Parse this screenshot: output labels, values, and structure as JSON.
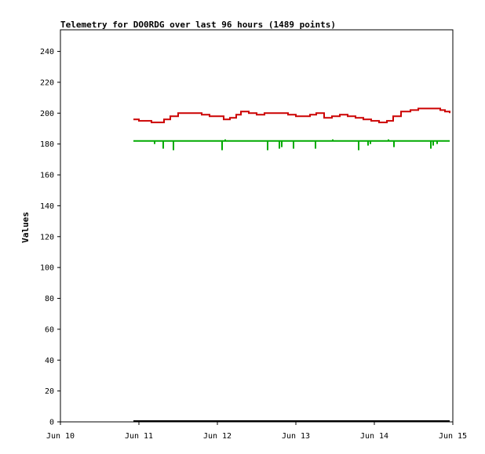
{
  "chart_data": {
    "type": "line",
    "title": "Telemetry for DO0RDG over last 96 hours (1489 points)",
    "xlabel": "",
    "ylabel": "Values",
    "x_ticks": [
      "Jun 10",
      "Jun 11",
      "Jun 12",
      "Jun 13",
      "Jun 14",
      "Jun 15"
    ],
    "y_ticks": [
      "0",
      "20",
      "40",
      "60",
      "80",
      "100",
      "120",
      "140",
      "160",
      "180",
      "200",
      "220",
      "240"
    ],
    "xlim_days": [
      10,
      15
    ],
    "ylim": [
      0,
      254
    ],
    "grid": false,
    "legend": "none",
    "series": [
      {
        "color": "#cc0000",
        "x_days": [
          10.93,
          11.0,
          11.08,
          11.16,
          11.24,
          11.32,
          11.4,
          11.5,
          11.6,
          11.7,
          11.8,
          11.9,
          12.0,
          12.08,
          12.16,
          12.24,
          12.3,
          12.4,
          12.5,
          12.6,
          12.7,
          12.8,
          12.9,
          13.0,
          13.1,
          13.18,
          13.26,
          13.36,
          13.46,
          13.56,
          13.66,
          13.76,
          13.86,
          13.96,
          14.06,
          14.16,
          14.24,
          14.34,
          14.46,
          14.56,
          14.66,
          14.76,
          14.84,
          14.9,
          14.96
        ],
        "values": [
          196,
          195,
          195,
          194,
          194,
          196,
          198,
          200,
          200,
          200,
          199,
          198,
          198,
          196,
          197,
          199,
          201,
          200,
          199,
          200,
          200,
          200,
          199,
          198,
          198,
          199,
          200,
          197,
          198,
          199,
          198,
          197,
          196,
          195,
          194,
          195,
          198,
          201,
          202,
          203,
          203,
          203,
          202,
          201,
          200
        ]
      },
      {
        "color": "#00aa00",
        "baseline": 182,
        "x_days": [
          10.93,
          14.96
        ],
        "values": [
          182,
          182
        ],
        "spikes": [
          {
            "x_day": 11.2,
            "value": 180
          },
          {
            "x_day": 11.31,
            "value": 177
          },
          {
            "x_day": 11.44,
            "value": 176
          },
          {
            "x_day": 12.06,
            "value": 176
          },
          {
            "x_day": 12.1,
            "value": 183
          },
          {
            "x_day": 12.64,
            "value": 176
          },
          {
            "x_day": 12.79,
            "value": 177
          },
          {
            "x_day": 12.82,
            "value": 178
          },
          {
            "x_day": 12.97,
            "value": 177
          },
          {
            "x_day": 13.25,
            "value": 177
          },
          {
            "x_day": 13.47,
            "value": 183
          },
          {
            "x_day": 13.8,
            "value": 176
          },
          {
            "x_day": 13.92,
            "value": 179
          },
          {
            "x_day": 13.95,
            "value": 180
          },
          {
            "x_day": 14.18,
            "value": 183
          },
          {
            "x_day": 14.25,
            "value": 178
          },
          {
            "x_day": 14.72,
            "value": 177
          },
          {
            "x_day": 14.75,
            "value": 179
          },
          {
            "x_day": 14.8,
            "value": 180
          }
        ]
      },
      {
        "color": "#000000",
        "x_days": [
          10.93,
          14.96
        ],
        "values": [
          0.5,
          0.5
        ]
      }
    ]
  }
}
